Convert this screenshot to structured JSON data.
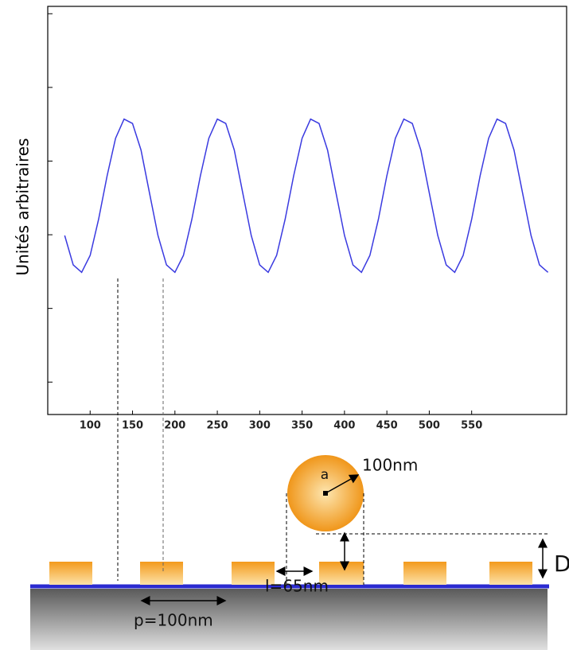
{
  "chart_data": {
    "type": "line",
    "ylabel": "Unités arbitraires",
    "x": [
      70,
      80,
      90,
      100,
      110,
      120,
      130,
      140,
      150,
      160,
      170,
      180,
      190,
      200,
      210,
      220,
      230,
      240,
      250,
      260,
      270,
      280,
      290,
      300,
      310,
      320,
      330,
      340,
      350,
      360,
      370,
      380,
      390,
      400,
      410,
      420,
      430,
      440,
      450,
      460,
      470,
      480,
      490,
      500,
      510,
      520,
      530,
      540,
      550,
      560,
      570,
      580,
      590,
      600,
      610,
      620,
      630,
      640
    ],
    "values": [
      2.99,
      2.59,
      2.49,
      2.72,
      3.21,
      3.8,
      4.31,
      4.57,
      4.51,
      4.15,
      3.57,
      2.99,
      2.59,
      2.49,
      2.72,
      3.21,
      3.8,
      4.31,
      4.57,
      4.51,
      4.15,
      3.57,
      2.99,
      2.59,
      2.49,
      2.72,
      3.21,
      3.8,
      4.31,
      4.57,
      4.51,
      4.15,
      3.57,
      2.99,
      2.59,
      2.49,
      2.72,
      3.21,
      3.8,
      4.31,
      4.57,
      4.51,
      4.15,
      3.57,
      2.99,
      2.59,
      2.49,
      2.72,
      3.21,
      3.8,
      4.31,
      4.57,
      4.51,
      4.15,
      3.57,
      2.99,
      2.59,
      2.49
    ],
    "color": "#3a3ae0",
    "xlim": [
      50,
      662
    ],
    "xticks": [
      100,
      150,
      200,
      250,
      300,
      350,
      400,
      450,
      500,
      550
    ],
    "ylim": [
      0.56,
      6.1
    ],
    "yticks": [
      1,
      2,
      3,
      4,
      5,
      6
    ],
    "annotations": [
      "a",
      "100nm",
      "D",
      "l=65nm",
      "p=100nm"
    ]
  }
}
